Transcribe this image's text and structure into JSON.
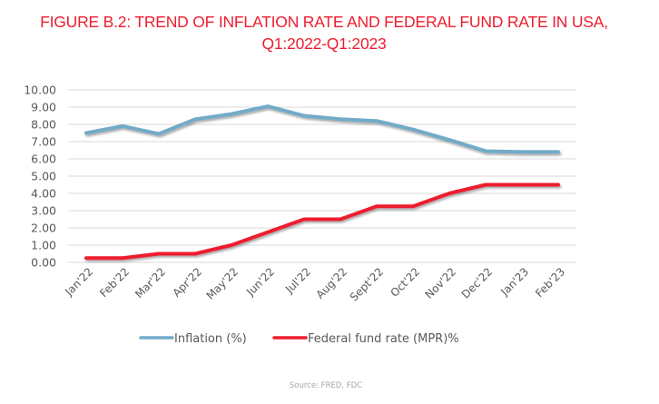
{
  "chart_data": {
    "type": "line",
    "title": "FIGURE B.2: TREND OF INFLATION RATE AND FEDERAL FUND RATE IN USA,",
    "subtitle": "Q1:2022-Q1:2023",
    "xlabel": "",
    "ylabel": "",
    "ylim": [
      0,
      10
    ],
    "yticks": [
      "0.00",
      "1.00",
      "2.00",
      "3.00",
      "4.00",
      "5.00",
      "6.00",
      "7.00",
      "8.00",
      "9.00",
      "10.00"
    ],
    "grid": true,
    "legend_position": "bottom",
    "categories": [
      "Jan'22",
      "Feb'22",
      "Mar'22",
      "Apr'22",
      "May'22",
      "Jun'22",
      "Jul'22",
      "Aug'22",
      "Sept'22",
      "Oct'22",
      "Nov'22",
      "Dec'22",
      "Jan'23",
      "Feb'23"
    ],
    "series": [
      {
        "name": "Inflation (%)",
        "color": "#71abc8",
        "values": [
          7.5,
          7.9,
          7.45,
          8.3,
          8.6,
          9.05,
          8.5,
          8.3,
          8.2,
          7.7,
          7.1,
          6.45,
          6.4,
          6.4
        ]
      },
      {
        "name": "Federal fund rate (MPR)%",
        "color": "#ee1d2e",
        "values": [
          0.25,
          0.25,
          0.5,
          0.5,
          1.0,
          1.75,
          2.5,
          2.5,
          3.25,
          3.25,
          4.0,
          4.5,
          4.5,
          4.5
        ]
      }
    ],
    "source": "Source: FRED,  FDC"
  }
}
